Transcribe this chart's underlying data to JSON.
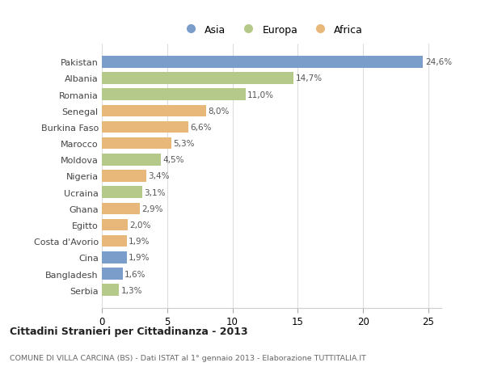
{
  "countries": [
    "Pakistan",
    "Albania",
    "Romania",
    "Senegal",
    "Burkina Faso",
    "Marocco",
    "Moldova",
    "Nigeria",
    "Ucraina",
    "Ghana",
    "Egitto",
    "Costa d'Avorio",
    "Cina",
    "Bangladesh",
    "Serbia"
  ],
  "values": [
    24.6,
    14.7,
    11.0,
    8.0,
    6.6,
    5.3,
    4.5,
    3.4,
    3.1,
    2.9,
    2.0,
    1.9,
    1.9,
    1.6,
    1.3
  ],
  "continents": [
    "Asia",
    "Europa",
    "Europa",
    "Africa",
    "Africa",
    "Africa",
    "Europa",
    "Africa",
    "Europa",
    "Africa",
    "Africa",
    "Africa",
    "Asia",
    "Asia",
    "Europa"
  ],
  "colors": {
    "Asia": "#7b9dc9",
    "Europa": "#b5c98a",
    "Africa": "#e8b87a"
  },
  "legend_order": [
    "Asia",
    "Europa",
    "Africa"
  ],
  "title": "Cittadini Stranieri per Cittadinanza - 2013",
  "subtitle": "COMUNE DI VILLA CARCINA (BS) - Dati ISTAT al 1° gennaio 2013 - Elaborazione TUTTITALIA.IT",
  "xlim": [
    0,
    26
  ],
  "xticks": [
    0,
    5,
    10,
    15,
    20,
    25
  ],
  "bg_color": "#ffffff",
  "grid_color": "#dddddd",
  "bar_height": 0.72
}
